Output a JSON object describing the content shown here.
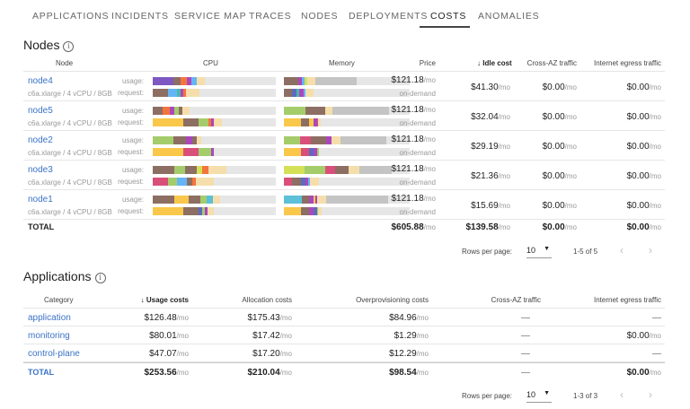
{
  "tabs": [
    "Applications",
    "Incidents",
    "Service map",
    "Traces",
    "Nodes",
    "Deployments",
    "Costs",
    "Anomalies"
  ],
  "active_tab": "Costs",
  "colors": {
    "link": "#3b73c6",
    "bar_bg": "#e6e6e6",
    "purple": "#7e57c2",
    "brown": "#8d6e63",
    "orange": "#f4743e",
    "magenta": "#ab47bc",
    "blue": "#64b5f6",
    "tan": "#f5deab",
    "teal": "#4db6ac",
    "grey": "#c4c4c4",
    "green": "#a5cc6b",
    "yellow": "#f9c84a",
    "pink": "#d94f7a",
    "indigo": "#5c6bc0",
    "lime": "#d4e157",
    "cyan": "#5bc0d8"
  },
  "nodes": {
    "title": "Nodes",
    "info_icon": "info-icon",
    "headers": {
      "node": "Node",
      "cpu": "CPU",
      "memory": "Memory",
      "price": "Price",
      "idle": "Idle cost",
      "cross_az": "Cross-AZ traffic",
      "egress": "Internet egress traffic"
    },
    "usage_label": "usage:",
    "request_label": "request:",
    "unit": "/mo",
    "rows": [
      {
        "name": "node4",
        "spec": "c6a.xlarge / 4 vCPU / 8GB",
        "price": "$121.18",
        "billing": "on-demand",
        "idle": "$41.30",
        "cross_az": "$0.00",
        "egress": "$0.00",
        "cpu_usage": [
          [
            "purple",
            17
          ],
          [
            "brown",
            5.6
          ],
          [
            "orange",
            4.9
          ],
          [
            "magenta",
            4.1
          ],
          [
            "blue",
            4.1
          ],
          [
            "tan",
            6.8
          ]
        ],
        "cpu_request": [
          [
            "brown",
            12.2
          ],
          [
            "blue",
            7.3
          ],
          [
            "teal",
            2.9
          ],
          [
            "magenta",
            2.4
          ],
          [
            "orange",
            2.4
          ],
          [
            "tan",
            10.7
          ]
        ],
        "mem_usage": [
          [
            "brown",
            11.2
          ],
          [
            "magenta",
            3.1
          ],
          [
            "blue",
            2.4
          ],
          [
            "lime",
            1.9
          ],
          [
            "tan",
            6.5
          ],
          [
            "grey",
            32.8
          ]
        ],
        "mem_request": [
          [
            "brown",
            6.5
          ],
          [
            "indigo",
            3.6
          ],
          [
            "teal",
            2.4
          ],
          [
            "magenta",
            3.1
          ],
          [
            "blue",
            1.7
          ],
          [
            "tan",
            6
          ]
        ]
      },
      {
        "name": "node5",
        "spec": "c6a.xlarge / 4 vCPU / 8GB",
        "price": "$121.18",
        "billing": "on-demand",
        "idle": "$32.04",
        "cross_az": "$0.00",
        "egress": "$0.00",
        "cpu_usage": [
          [
            "brown",
            8
          ],
          [
            "orange",
            5.9
          ],
          [
            "magenta",
            3.9
          ],
          [
            "green",
            3.7
          ],
          [
            "brown",
            2.9
          ],
          [
            "tan",
            5.6
          ]
        ],
        "cpu_request": [
          [
            "yellow",
            25
          ],
          [
            "brown",
            12.2
          ],
          [
            "green",
            7.8
          ],
          [
            "orange",
            2.4
          ],
          [
            "magenta",
            2.4
          ],
          [
            "tan",
            6.1
          ]
        ],
        "mem_usage": [
          [
            "green",
            17
          ],
          [
            "brown",
            15.8
          ],
          [
            "tan",
            6
          ],
          [
            "grey",
            44.5
          ]
        ],
        "mem_request": [
          [
            "yellow",
            13.4
          ],
          [
            "brown",
            6.9
          ],
          [
            "yellow",
            3.1
          ],
          [
            "magenta",
            2.9
          ],
          [
            "pink",
            1.2
          ],
          [
            "tan",
            1.7
          ]
        ]
      },
      {
        "name": "node2",
        "spec": "c6a.xlarge / 4 vCPU / 8GB",
        "price": "$121.18",
        "billing": "on-demand",
        "idle": "$29.19",
        "cross_az": "$0.00",
        "egress": "$0.00",
        "cpu_usage": [
          [
            "green",
            16.6
          ],
          [
            "brown",
            10.7
          ],
          [
            "magenta",
            4.9
          ],
          [
            "brown",
            3.7
          ],
          [
            "tan",
            3.2
          ]
        ],
        "cpu_request": [
          [
            "yellow",
            25
          ],
          [
            "pink",
            12.4
          ],
          [
            "green",
            10
          ],
          [
            "magenta",
            2.4
          ]
        ],
        "mem_usage": [
          [
            "green",
            13.2
          ],
          [
            "pink",
            7.9
          ],
          [
            "brown",
            12.4
          ],
          [
            "magenta",
            4.1
          ],
          [
            "tan",
            7.2
          ],
          [
            "grey",
            36.6
          ]
        ],
        "mem_request": [
          [
            "yellow",
            13.6
          ],
          [
            "pink",
            6.7
          ],
          [
            "indigo",
            3.1
          ],
          [
            "magenta",
            2.9
          ],
          [
            "green",
            1.4
          ]
        ]
      },
      {
        "name": "node3",
        "spec": "c6a.xlarge / 4 vCPU / 8GB",
        "price": "$121.18",
        "billing": "on-demand",
        "idle": "$21.36",
        "cross_az": "$0.00",
        "egress": "$0.00",
        "cpu_usage": [
          [
            "brown",
            17.3
          ],
          [
            "green",
            9.3
          ],
          [
            "brown",
            9.3
          ],
          [
            "lime",
            4.4
          ],
          [
            "orange",
            4.9
          ],
          [
            "tan",
            14.6
          ]
        ],
        "cpu_request": [
          [
            "pink",
            12.4
          ],
          [
            "green",
            7.3
          ],
          [
            "blue",
            7.8
          ],
          [
            "brown",
            4.9
          ],
          [
            "orange",
            2.4
          ],
          [
            "tan",
            14.6
          ]
        ],
        "mem_usage": [
          [
            "lime",
            16.7
          ],
          [
            "green",
            16.3
          ],
          [
            "pink",
            7.7
          ],
          [
            "brown",
            11
          ],
          [
            "tan",
            8.1
          ],
          [
            "grey",
            25.8
          ]
        ],
        "mem_request": [
          [
            "pink",
            6.7
          ],
          [
            "brown",
            6.7
          ],
          [
            "indigo",
            3.6
          ],
          [
            "magenta",
            2.2
          ],
          [
            "blue",
            1.7
          ],
          [
            "tan",
            7.2
          ]
        ]
      },
      {
        "name": "node1",
        "spec": "c6a.xlarge / 4 vCPU / 8GB",
        "price": "$121.18",
        "billing": "on-demand",
        "idle": "$15.69",
        "cross_az": "$0.00",
        "egress": "$0.00",
        "cpu_usage": [
          [
            "brown",
            17.3
          ],
          [
            "yellow",
            12.2
          ],
          [
            "brown",
            9.3
          ],
          [
            "green",
            4.9
          ],
          [
            "cyan",
            5.1
          ],
          [
            "tan",
            6.1
          ]
        ],
        "cpu_request": [
          [
            "yellow",
            25
          ],
          [
            "brown",
            12.4
          ],
          [
            "indigo",
            2.7
          ],
          [
            "green",
            2.4
          ],
          [
            "magenta",
            2.4
          ],
          [
            "tan",
            4.4
          ]
        ],
        "mem_usage": [
          [
            "cyan",
            14.1
          ],
          [
            "brown",
            5.7
          ],
          [
            "magenta",
            4.1
          ],
          [
            "yellow",
            1.4
          ],
          [
            "magenta",
            1.4
          ],
          [
            "tan",
            6.7
          ],
          [
            "grey",
            49.8
          ]
        ],
        "mem_request": [
          [
            "yellow",
            13.6
          ],
          [
            "brown",
            6.7
          ],
          [
            "magenta",
            3.6
          ],
          [
            "indigo",
            2.4
          ],
          [
            "green",
            1.2
          ],
          [
            "tan",
            2.4
          ]
        ]
      }
    ],
    "total": {
      "label": "TOTAL",
      "price": "$605.88",
      "idle": "$139.58",
      "cross_az": "$0.00",
      "egress": "$0.00"
    },
    "pagination": {
      "rows_per_page_label": "Rows per page:",
      "rows_per_page": "10",
      "range": "1-5 of 5"
    }
  },
  "apps": {
    "title": "Applications",
    "headers": {
      "category": "Category",
      "usage": "Usage costs",
      "allocation": "Allocation costs",
      "overprov": "Overprovisioning costs",
      "cross_az": "Cross-AZ traffic",
      "egress": "Internet egress traffic"
    },
    "rows": [
      {
        "name": "application",
        "usage": "$126.48",
        "allocation": "$175.43",
        "overprov": "$84.96",
        "cross_az": "—",
        "egress": "—"
      },
      {
        "name": "monitoring",
        "usage": "$80.01",
        "allocation": "$17.42",
        "overprov": "$1.29",
        "cross_az": "—",
        "egress": "$0.00"
      },
      {
        "name": "control-plane",
        "usage": "$47.07",
        "allocation": "$17.20",
        "overprov": "$12.29",
        "cross_az": "—",
        "egress": "—"
      }
    ],
    "total": {
      "label": "TOTAL",
      "usage": "$253.56",
      "allocation": "$210.04",
      "overprov": "$98.54",
      "cross_az": "—",
      "egress": "$0.00"
    },
    "pagination": {
      "rows_per_page_label": "Rows per page:",
      "rows_per_page": "10",
      "range": "1-3 of 3"
    }
  }
}
